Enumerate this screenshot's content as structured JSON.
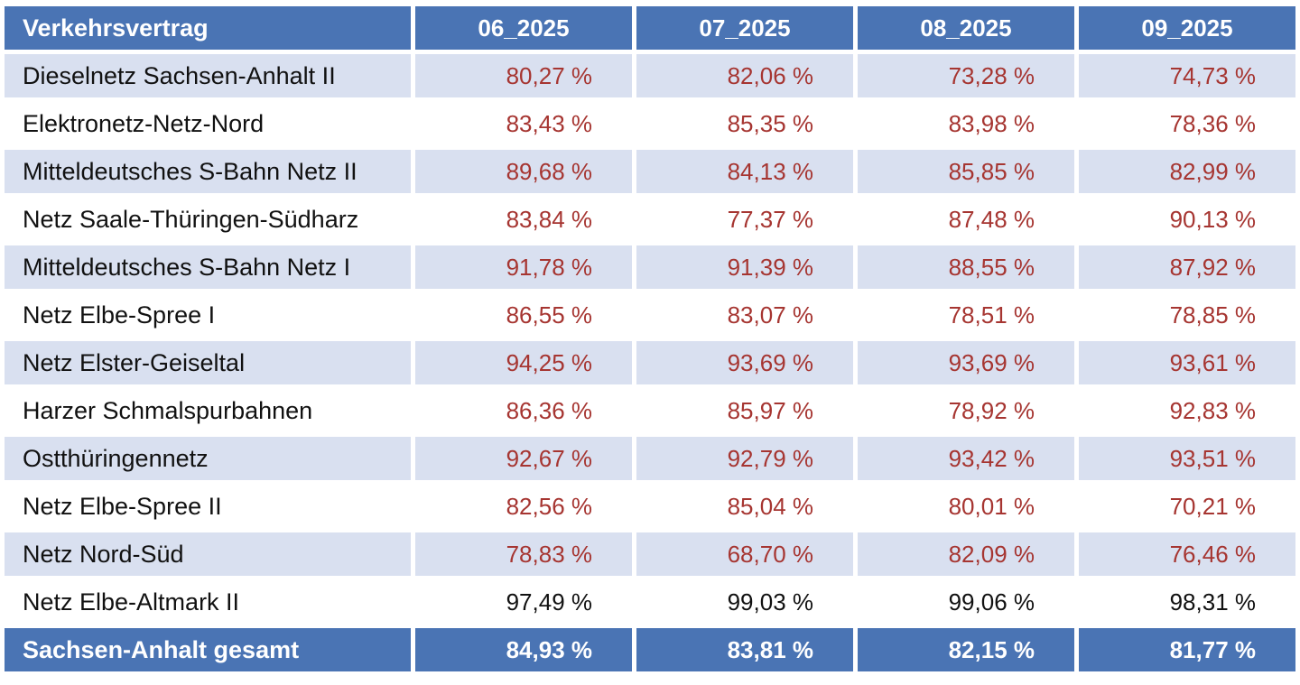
{
  "colors": {
    "header_bg": "#4A74B4",
    "band_row_bg": "#D9E0F0",
    "plain_row_bg": "#FFFFFF",
    "value_red": "#A63531",
    "value_black": "#111111",
    "header_text": "#FFFFFF"
  },
  "table": {
    "header": {
      "label": "Verkehrsvertrag",
      "months": [
        "06_2025",
        "07_2025",
        "08_2025",
        "09_2025"
      ]
    },
    "rows": [
      {
        "name": "Dieselnetz Sachsen-Anhalt II",
        "values": [
          "80,27 %",
          "82,06 %",
          "73,28 %",
          "74,73 %"
        ],
        "value_color": "red"
      },
      {
        "name": "Elektronetz-Netz-Nord",
        "values": [
          "83,43 %",
          "85,35 %",
          "83,98 %",
          "78,36 %"
        ],
        "value_color": "red"
      },
      {
        "name": "Mitteldeutsches S-Bahn Netz II",
        "values": [
          "89,68 %",
          "84,13 %",
          "85,85 %",
          "82,99 %"
        ],
        "value_color": "red"
      },
      {
        "name": "Netz Saale-Thüringen-Südharz",
        "values": [
          "83,84 %",
          "77,37 %",
          "87,48 %",
          "90,13 %"
        ],
        "value_color": "red"
      },
      {
        "name": "Mitteldeutsches S-Bahn Netz I",
        "values": [
          "91,78 %",
          "91,39 %",
          "88,55 %",
          "87,92 %"
        ],
        "value_color": "red"
      },
      {
        "name": "Netz Elbe-Spree I",
        "values": [
          "86,55 %",
          "83,07 %",
          "78,51 %",
          "78,85 %"
        ],
        "value_color": "red"
      },
      {
        "name": "Netz Elster-Geiseltal",
        "values": [
          "94,25 %",
          "93,69 %",
          "93,69 %",
          "93,61 %"
        ],
        "value_color": "red"
      },
      {
        "name": "Harzer Schmalspurbahnen",
        "values": [
          "86,36 %",
          "85,97 %",
          "78,92 %",
          "92,83 %"
        ],
        "value_color": "red"
      },
      {
        "name": "Ostthüringennetz",
        "values": [
          "92,67 %",
          "92,79 %",
          "93,42 %",
          "93,51 %"
        ],
        "value_color": "red"
      },
      {
        "name": "Netz Elbe-Spree II",
        "values": [
          "82,56 %",
          "85,04 %",
          "80,01 %",
          "70,21 %"
        ],
        "value_color": "red"
      },
      {
        "name": "Netz Nord-Süd",
        "values": [
          "78,83 %",
          "68,70 %",
          "82,09 %",
          "76,46 %"
        ],
        "value_color": "red"
      },
      {
        "name": "Netz Elbe-Altmark II",
        "values": [
          "97,49 %",
          "99,03 %",
          "99,06 %",
          "98,31 %"
        ],
        "value_color": "black"
      }
    ],
    "footer": {
      "label": "Sachsen-Anhalt gesamt",
      "values": [
        "84,93 %",
        "83,81 %",
        "82,15 %",
        "81,77 %"
      ]
    }
  },
  "chart_data": {
    "type": "table",
    "title": "Verkehrsvertrag",
    "columns": [
      "Verkehrsvertrag",
      "06_2025",
      "07_2025",
      "08_2025",
      "09_2025"
    ],
    "value_unit": "%",
    "rows": [
      [
        "Dieselnetz Sachsen-Anhalt II",
        80.27,
        82.06,
        73.28,
        74.73
      ],
      [
        "Elektronetz-Netz-Nord",
        83.43,
        85.35,
        83.98,
        78.36
      ],
      [
        "Mitteldeutsches S-Bahn Netz II",
        89.68,
        84.13,
        85.85,
        82.99
      ],
      [
        "Netz Saale-Thüringen-Südharz",
        83.84,
        77.37,
        87.48,
        90.13
      ],
      [
        "Mitteldeutsches S-Bahn Netz I",
        91.78,
        91.39,
        88.55,
        87.92
      ],
      [
        "Netz Elbe-Spree I",
        86.55,
        83.07,
        78.51,
        78.85
      ],
      [
        "Netz Elster-Geiseltal",
        94.25,
        93.69,
        93.69,
        93.61
      ],
      [
        "Harzer Schmalspurbahnen",
        86.36,
        85.97,
        78.92,
        92.83
      ],
      [
        "Ostthüringennetz",
        92.67,
        92.79,
        93.42,
        93.51
      ],
      [
        "Netz Elbe-Spree II",
        82.56,
        85.04,
        80.01,
        70.21
      ],
      [
        "Netz Nord-Süd",
        78.83,
        68.7,
        82.09,
        76.46
      ],
      [
        "Netz Elbe-Altmark II",
        97.49,
        99.03,
        99.06,
        98.31
      ]
    ],
    "footer_row": [
      "Sachsen-Anhalt gesamt",
      84.93,
      83.81,
      82.15,
      81.77
    ]
  }
}
